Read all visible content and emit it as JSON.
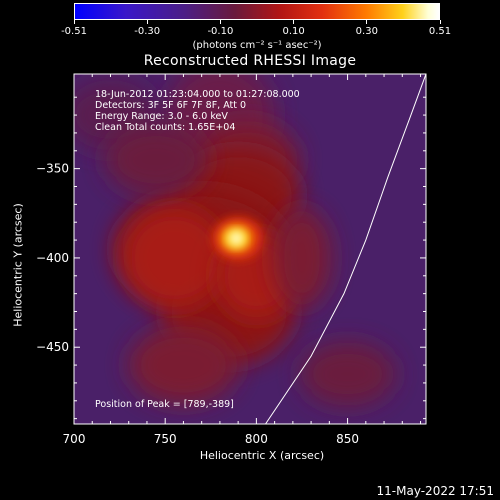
{
  "colorbar": {
    "ticks": [
      "-0.51",
      "-0.30",
      "-0.10",
      "0.10",
      "0.30",
      "0.51"
    ],
    "units": "(photons cm⁻² s⁻¹ asec⁻²)"
  },
  "chart_data": {
    "type": "heatmap",
    "title": "Reconstructed RHESSI Image",
    "xlabel": "Heliocentric X (arcsec)",
    "ylabel": "Heliocentric Y (arcsec)",
    "xlim": [
      700,
      893
    ],
    "ylim": [
      -493,
      -297
    ],
    "xticks": [
      700,
      750,
      800,
      850
    ],
    "yticks": [
      -350,
      -400,
      -450
    ],
    "color_range": [
      -0.51,
      0.51
    ],
    "colormap": "heat (blue-purple-red-yellow-white)",
    "peak": [
      789,
      -389
    ],
    "info_lines": [
      "18-Jun-2012 01:23:04.000 to 01:27:08.000",
      "Detectors: 3F 5F 6F 7F 8F, Att 0",
      "Energy Range: 3.0 - 6.0 keV",
      "Clean     Total counts: 1.65E+04"
    ],
    "peak_label": "Position of Peak = [789,-389]",
    "limb_curve": [
      [
        805,
        -493
      ],
      [
        830,
        -455
      ],
      [
        848,
        -420
      ],
      [
        860,
        -390
      ],
      [
        872,
        -355
      ],
      [
        884,
        -322
      ],
      [
        893,
        -297
      ]
    ]
  },
  "footer": {
    "date": "11-May-2022 17:51"
  }
}
